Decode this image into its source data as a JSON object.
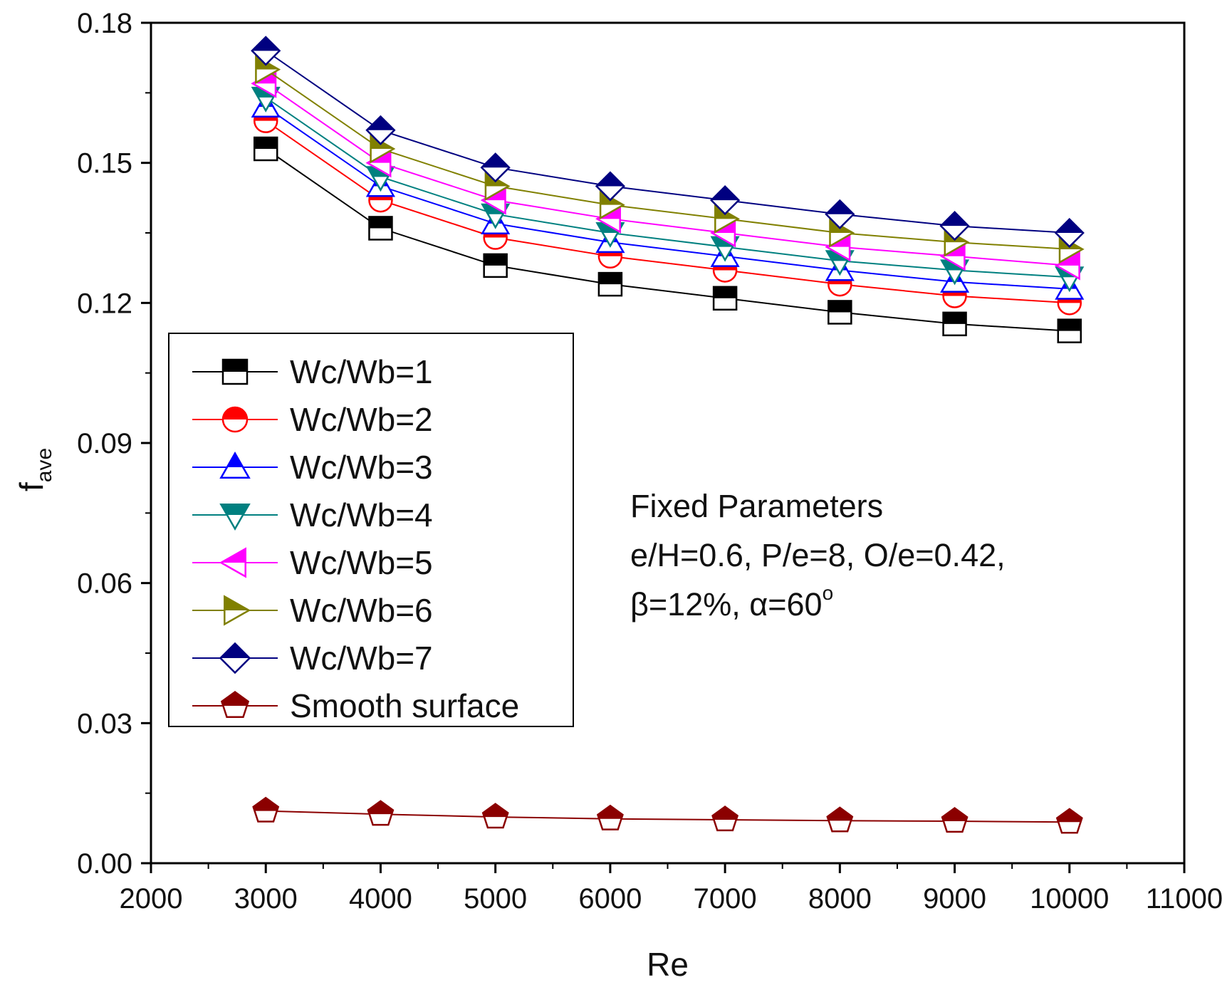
{
  "chart_data": {
    "type": "line",
    "title": "",
    "xlabel": "Re",
    "ylabel": {
      "main": "f",
      "sub": "ave"
    },
    "xlim": [
      2000,
      11000
    ],
    "ylim": [
      0.0,
      0.18
    ],
    "xticks": [
      2000,
      3000,
      4000,
      5000,
      6000,
      7000,
      8000,
      9000,
      10000,
      11000
    ],
    "xtick_labels": [
      "2000",
      "3000",
      "4000",
      "5000",
      "6000",
      "7000",
      "8000",
      "9000",
      "10000",
      "11000"
    ],
    "yticks": [
      0.0,
      0.03,
      0.06,
      0.09,
      0.12,
      0.15,
      0.18
    ],
    "ytick_labels": [
      "0.00",
      "0.03",
      "0.06",
      "0.09",
      "0.12",
      "0.15",
      "0.18"
    ],
    "grid": false,
    "legend_position": "left-center",
    "x": [
      3000,
      4000,
      5000,
      6000,
      7000,
      8000,
      9000,
      10000
    ],
    "series": [
      {
        "name": "Wc/Wb=1",
        "color": "#000000",
        "marker": "square",
        "values": [
          0.153,
          0.136,
          0.128,
          0.124,
          0.121,
          0.118,
          0.1155,
          0.114
        ]
      },
      {
        "name": "Wc/Wb=2",
        "color": "#ff0000",
        "marker": "circle",
        "values": [
          0.159,
          0.142,
          0.134,
          0.13,
          0.127,
          0.124,
          0.1215,
          0.12
        ]
      },
      {
        "name": "Wc/Wb=3",
        "color": "#0000ff",
        "marker": "triangle-up",
        "values": [
          0.162,
          0.145,
          0.137,
          0.133,
          0.13,
          0.127,
          0.1245,
          0.123
        ]
      },
      {
        "name": "Wc/Wb=4",
        "color": "#008080",
        "marker": "triangle-down",
        "values": [
          0.164,
          0.147,
          0.139,
          0.135,
          0.132,
          0.129,
          0.127,
          0.1255
        ]
      },
      {
        "name": "Wc/Wb=5",
        "color": "#ff00ff",
        "marker": "triangle-left",
        "values": [
          0.167,
          0.15,
          0.142,
          0.138,
          0.135,
          0.132,
          0.13,
          0.128
        ]
      },
      {
        "name": "Wc/Wb=6",
        "color": "#808000",
        "marker": "triangle-right",
        "values": [
          0.17,
          0.153,
          0.145,
          0.141,
          0.138,
          0.135,
          0.133,
          0.1315
        ]
      },
      {
        "name": "Wc/Wb=7",
        "color": "#000080",
        "marker": "diamond",
        "values": [
          0.174,
          0.157,
          0.149,
          0.145,
          0.142,
          0.139,
          0.1365,
          0.135
        ]
      },
      {
        "name": "Smooth surface",
        "color": "#8b0000",
        "marker": "pentagon",
        "values": [
          0.0112,
          0.0105,
          0.0099,
          0.0095,
          0.0093,
          0.0091,
          0.009,
          0.0088
        ]
      }
    ],
    "annotations": {
      "title": "Fixed Parameters",
      "line1": "e/H=0.6, P/e=8, O/e=0.42,",
      "line2_prefix": "β=12%, α=60",
      "line2_superscript": "o"
    }
  }
}
